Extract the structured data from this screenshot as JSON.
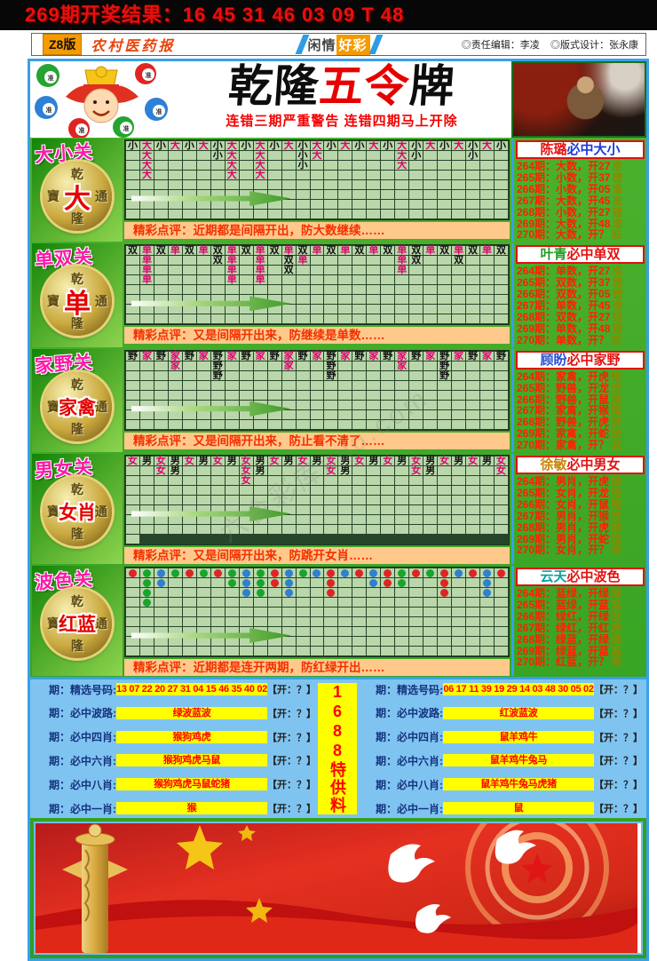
{
  "top_bar": {
    "result_text": "269期开奖结果：16 45 31 46 03 09 T 48"
  },
  "masthead": {
    "edition": "Z8版",
    "paper_name": "农村医药报",
    "center_left": "闲情",
    "center_right": "好彩",
    "editor": "◎责任编辑：李凌",
    "designer": "◎版式设计：张永康"
  },
  "header": {
    "title_black1": "乾隆",
    "title_red": "五令",
    "title_black2": "牌",
    "subtitle": "连错三期严重警告 连错四期马上开除"
  },
  "mascot": {
    "ball_label": "准",
    "ball_colors": [
      "#23a52f",
      "#2e7fd6",
      "#e02424",
      "#23a52f",
      "#2e7fd6",
      "#e02424"
    ]
  },
  "coin": {
    "top": "乾",
    "left": "寶",
    "right": "通",
    "bottom": "隆"
  },
  "watermark": "六合彩库uuu.com",
  "sections": [
    {
      "title": "大小关",
      "coin_center": "大",
      "type": "text",
      "comment": "精彩点评：近期都是间隔开出，防大数继续……",
      "rows": [
        "小大小大小大小大小大小大小大小大小大小大小大小大小大小",
        ".大....小大.大..小大.....大小...小..",
        ".大.....大.大..小......大.......",
        ".大.....大.大.................",
        "...........................",
        "...........................",
        "...........................",
        "..........................."
      ]
    },
    {
      "title": "单双关",
      "coin_center": "单",
      "type": "text",
      "comment": "精彩点评：又是间隔开出来，防继续是单数……",
      "rows": [
        "双单双单双单双单双单双单双单双单双单双单双单双单双单双",
        ".单....双单.单.双单......单双..双...",
        ".单.....单.单.双.......单.......",
        ".单.....单.单.................",
        "...........................",
        "...........................",
        "...........................",
        "..........................."
      ]
    },
    {
      "title": "家野关",
      "coin_center": "家禽",
      "type": "text",
      "comment": "精彩点评：又是间隔开出来，防止看不清了……",
      "rows": [
        "野家野家野家野家野家野家野家野家野家野家野家野家野家野",
        "...家..野....家..野....家..野....",
        "......野.......野.......野....",
        "...........................",
        "...........................",
        "...........................",
        "...........................",
        "..........................."
      ]
    },
    {
      "title": "男女关",
      "coin_center": "女肖",
      "type": "text",
      "comment": "精彩点评：又是间隔开出来，防跳开女肖……",
      "rows": [
        "女男女男女男女男女男女男女男女男女男女男女男女男女男女",
        "..女男....女男....女男....女男....女",
        "........女...................",
        "...........................",
        "...........................",
        "...........................",
        "...........................",
        "..........................."
      ]
    },
    {
      "title": "波色关",
      "coin_center": "红蓝",
      "type": "dots",
      "comment": "精彩点评：近期都是连开两期，防红绿开出……",
      "rows": [
        "RGBGRGRGBGRBGBRBRBRGRGRBRBR",
        ".GB....GBGRB..R..BRG..R..B.",
        ".G......BG.B..R.......R..B.",
        ".G.........................",
        "...........................",
        "...........................",
        "...........................",
        "...........................",
        "..........................."
      ]
    }
  ],
  "panels": [
    {
      "name": "陈璐",
      "name_color": "#e31212",
      "rest": "必中大小",
      "rest_color": "#1b3bd6",
      "rows": [
        {
          "text": "264期：大数，开27",
          "verdict": "准"
        },
        {
          "text": "265期：小数，开37",
          "verdict": "错"
        },
        {
          "text": "266期：小数，开05",
          "verdict": "准"
        },
        {
          "text": "267期：大数，开45",
          "verdict": "准"
        },
        {
          "text": "268期：小数，开27",
          "verdict": "错"
        },
        {
          "text": "269期：大数，开48",
          "verdict": "准"
        },
        {
          "text": "270期：大数，开？",
          "verdict": "准"
        }
      ]
    },
    {
      "name": "叶青",
      "name_color": "#1f9e1f",
      "rest": "必中单双",
      "rest_color": "#e31212",
      "rows": [
        {
          "text": "264期：单数，开27",
          "verdict": "准"
        },
        {
          "text": "265期：双数，开37",
          "verdict": "错"
        },
        {
          "text": "266期：双数，开05",
          "verdict": "错"
        },
        {
          "text": "267期：单数，开45",
          "verdict": "准"
        },
        {
          "text": "268期：双数，开27",
          "verdict": "错"
        },
        {
          "text": "269期：单数，开48",
          "verdict": "错"
        },
        {
          "text": "270期：单数，开？",
          "verdict": "准"
        }
      ]
    },
    {
      "name": "顾盼",
      "name_color": "#2a4fd0",
      "rest": "必中家野",
      "rest_color": "#e31212",
      "rows": [
        {
          "text": "264期：家禽，开虎",
          "verdict": "错"
        },
        {
          "text": "265期：野兽，开龙",
          "verdict": "准"
        },
        {
          "text": "266期：野兽，开鼠",
          "verdict": "准"
        },
        {
          "text": "267期：家禽，开猴",
          "verdict": "错"
        },
        {
          "text": "268期：野兽，开虎",
          "verdict": "准"
        },
        {
          "text": "269期：家禽，开蛇",
          "verdict": "错"
        },
        {
          "text": "270期：家禽，开？",
          "verdict": "准"
        }
      ]
    },
    {
      "name": "徐敏",
      "name_color": "#c8860a",
      "rest": "必中男女",
      "rest_color": "#e31212",
      "rows": [
        {
          "text": "264期：男肖，开虎",
          "verdict": "准"
        },
        {
          "text": "265期：女肖，开龙",
          "verdict": "错"
        },
        {
          "text": "266期：女肖，开鼠",
          "verdict": "错"
        },
        {
          "text": "267期：男肖，开猴",
          "verdict": "准"
        },
        {
          "text": "268期：男肖，开虎",
          "verdict": "准"
        },
        {
          "text": "269期：男肖，开蛇",
          "verdict": "错"
        },
        {
          "text": "270期：女肖，开？",
          "verdict": "准"
        }
      ]
    },
    {
      "name": "云天",
      "name_color": "#0aa0a0",
      "rest": "必中波色",
      "rest_color": "#e31212",
      "rows": [
        {
          "text": "264期：蓝绿，开绿",
          "verdict": "准"
        },
        {
          "text": "265期：蓝绿，开蓝",
          "verdict": "准"
        },
        {
          "text": "266期：绿红，开绿",
          "verdict": "准"
        },
        {
          "text": "267期：绿红，开红",
          "verdict": "准"
        },
        {
          "text": "268期：绿蓝，开绿",
          "verdict": "准"
        },
        {
          "text": "269期：绿蓝，开蓝",
          "verdict": "准"
        },
        {
          "text": "270期：红蓝，开？",
          "verdict": "准"
        }
      ]
    }
  ],
  "picks": {
    "special": "1688特供料",
    "left": [
      {
        "label": "期：精选号码:",
        "value": "13 07 22 20 27 31 04 15 46 35 40 02",
        "open": "【开：？】"
      },
      {
        "label": "期：必中波路:",
        "value": "绿波蓝波",
        "open": "【开：？】"
      },
      {
        "label": "期：必中四肖:",
        "value": "猴狗鸡虎",
        "open": "【开：？】"
      },
      {
        "label": "期：必中六肖:",
        "value": "猴狗鸡虎马鼠",
        "open": "【开：？】"
      },
      {
        "label": "期：必中八肖:",
        "value": "猴狗鸡虎马鼠蛇猪",
        "open": "【开：？】"
      },
      {
        "label": "期：必中一肖:",
        "value": "猴",
        "open": "【开：？】"
      }
    ],
    "right": [
      {
        "label": "期：精选号码:",
        "value": "06 17 11 39 19 29 14 03 48 30 05 02",
        "open": "【开：？】"
      },
      {
        "label": "期：必中波路:",
        "value": "红波蓝波",
        "open": "【开：？】"
      },
      {
        "label": "期：必中四肖:",
        "value": "鼠羊鸡牛",
        "open": "【开：？】"
      },
      {
        "label": "期：必中六肖:",
        "value": "鼠羊鸡牛兔马",
        "open": "【开：？】"
      },
      {
        "label": "期：必中八肖:",
        "value": "鼠羊鸡牛兔马虎猪",
        "open": "【开：？】"
      },
      {
        "label": "期：必中一肖:",
        "value": "鼠",
        "open": "【开：？】"
      }
    ]
  },
  "colors": {
    "magenta_mark": "#e0006e",
    "black_mark": "#101010",
    "dot_red": "#e02424",
    "dot_green": "#18a52c",
    "dot_blue": "#2f80d0",
    "comment_bg": "#ffc98c",
    "comment_text": "#f33000",
    "verdict_olive": "#8a8a00",
    "frame_blue": "#3aa0e8",
    "bg_green": "#3fae24",
    "grid_bg": "#b9d7aa",
    "highlight_yellow": "#ffff00",
    "pick_red": "#ff0000"
  }
}
